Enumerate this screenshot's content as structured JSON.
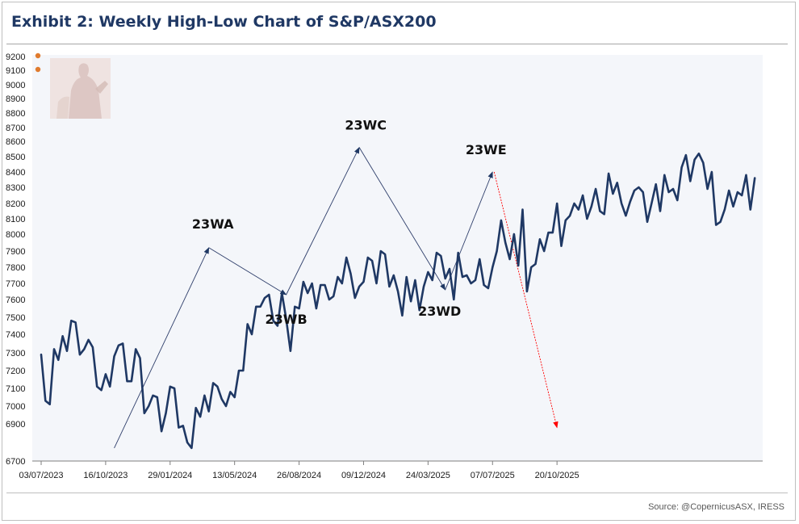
{
  "header": {
    "title": "Exhibit 2: Weekly High-Low Chart of S&P/ASX200"
  },
  "footer": {
    "source": "Source: @CopernicusASX, IRESS"
  },
  "watermark": {
    "icon": "statue-watermark-icon",
    "colors": [
      "#e8d6d3",
      "#d9c2be"
    ]
  },
  "colors": {
    "series": "#1f3864",
    "plot_bg": "#f4f6fa",
    "arrow": "#2f3f6b",
    "projection": "#ff0000",
    "marker": "#e07b2e"
  },
  "chart_data": {
    "type": "line",
    "title": "Exhibit 2: Weekly High-Low Chart of S&P/ASX200",
    "xlabel": "",
    "ylabel": "",
    "grid": false,
    "legend": "none",
    "x_tick_labels": [
      "03/07/2023",
      "16/10/2023",
      "29/01/2024",
      "13/05/2024",
      "26/08/2024",
      "09/12/2024",
      "24/03/2025",
      "07/07/2025",
      "20/10/2025"
    ],
    "y_tick_labels": [
      "6700",
      "6900",
      "7000",
      "7100",
      "7200",
      "7300",
      "7400",
      "7500",
      "7600",
      "7700",
      "7800",
      "7900",
      "8000",
      "8100",
      "8200",
      "8300",
      "8400",
      "8500",
      "8600",
      "8700",
      "8800",
      "8900",
      "9000",
      "9100",
      "9200"
    ],
    "markers": [
      9200,
      9100
    ],
    "series": [
      {
        "start_date": "2023-07-03",
        "frequency": "weekly",
        "values": [
          7290,
          7030,
          7010,
          7320,
          7260,
          7390,
          7310,
          7480,
          7470,
          7290,
          7320,
          7370,
          7330,
          7110,
          7090,
          7180,
          7110,
          7280,
          7340,
          7350,
          7140,
          7140,
          7320,
          7270,
          6960,
          7000,
          7060,
          7050,
          6860,
          6960,
          7110,
          7100,
          6880,
          6890,
          6800,
          6770,
          6990,
          6940,
          7060,
          6970,
          7130,
          7110,
          7040,
          7000,
          7080,
          7050,
          7200,
          7200,
          7460,
          7400,
          7560,
          7560,
          7610,
          7630,
          7480,
          7450,
          7640,
          7490,
          7310,
          7560,
          7550,
          7710,
          7640,
          7700,
          7550,
          7690,
          7690,
          7600,
          7620,
          7740,
          7700,
          7860,
          7760,
          7610,
          7680,
          7710,
          7860,
          7840,
          7700,
          7900,
          7880,
          7680,
          7750,
          7650,
          7510,
          7740,
          7590,
          7720,
          7540,
          7680,
          7770,
          7720,
          7890,
          7870,
          7730,
          7790,
          7600,
          7890,
          7740,
          7750,
          7700,
          7720,
          7850,
          7690,
          7670,
          7800,
          7900,
          8090,
          7950,
          7850,
          8000,
          7810,
          8160,
          7650,
          7800,
          7820,
          7970,
          7900,
          8010,
          8010,
          8200,
          7930,
          8090,
          8120,
          8200,
          8160,
          8250,
          8100,
          8180,
          8290,
          8150,
          8130,
          8390,
          8260,
          8330,
          8200,
          8120,
          8210,
          8280,
          8300,
          8270,
          8080,
          8200,
          8320,
          8150,
          8380,
          8270,
          8290,
          8220,
          8430,
          8510,
          8340,
          8480,
          8520,
          8460,
          8290,
          8400,
          8060,
          8080,
          8160,
          8280,
          8180,
          8270,
          8250,
          8380,
          8160,
          8360
        ]
      }
    ],
    "annotations": [
      {
        "label": "23WA",
        "date": "2024-04-01",
        "value": 7920
      },
      {
        "label": "23WB",
        "date": "2024-08-05",
        "value": 7630
      },
      {
        "label": "23WC",
        "date": "2024-12-02",
        "value": 8560
      },
      {
        "label": "23WD",
        "date": "2025-04-21",
        "value": 7660
      },
      {
        "label": "23WE",
        "date": "2025-07-07",
        "value": 8400
      }
    ],
    "wave_path": [
      {
        "date": "2023-10-30",
        "value": 6770
      },
      {
        "date": "2024-04-01",
        "value": 7920
      },
      {
        "date": "2024-08-05",
        "value": 7630
      },
      {
        "date": "2024-12-02",
        "value": 8560
      },
      {
        "date": "2025-04-21",
        "value": 7660
      },
      {
        "date": "2025-07-07",
        "value": 8400
      }
    ],
    "projection_path": [
      {
        "date": "2025-07-07",
        "value": 8400
      },
      {
        "date": "2025-10-20",
        "value": 6880
      }
    ]
  }
}
